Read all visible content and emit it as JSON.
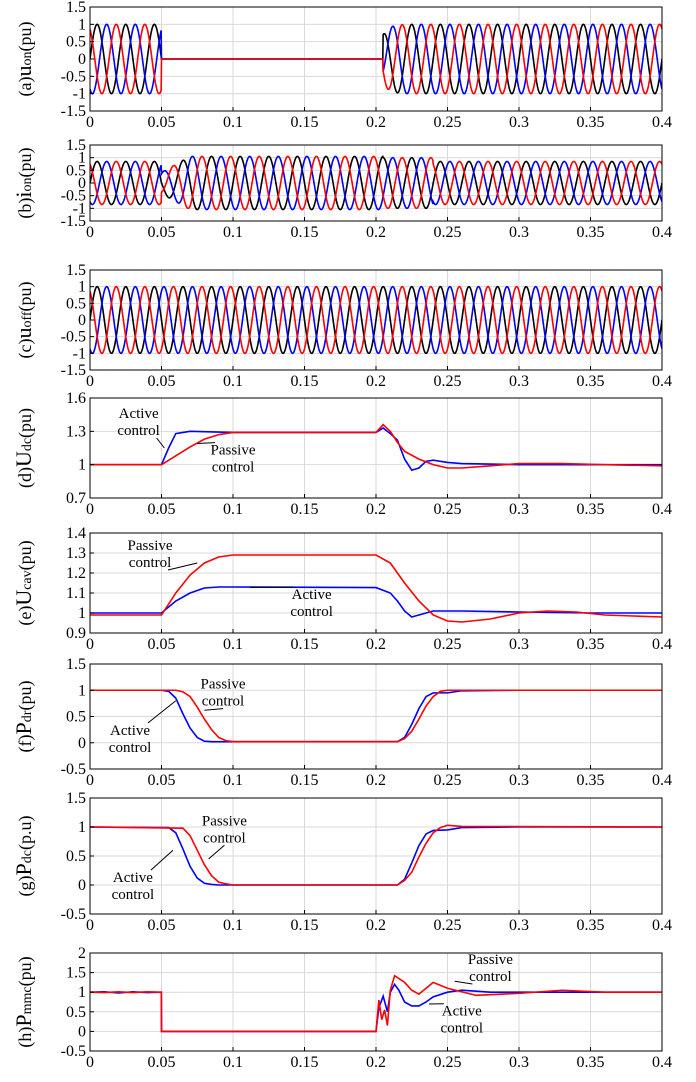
{
  "colors": {
    "black": "#000000",
    "blue": "#0000ff",
    "red": "#ff0000",
    "grid": "#d9d9d9"
  },
  "chart_data": [
    {
      "id": "a",
      "type": "line",
      "ylabel": "(a)uon(pu)",
      "ylabel_parts": [
        "(a)",
        "u",
        "on",
        "(pu)"
      ],
      "xlim": [
        0,
        0.4
      ],
      "ylim": [
        -1.5,
        1.5
      ],
      "xticks": [
        "0",
        "0.05",
        "0.1",
        "0.15",
        "0.2",
        "0.25",
        "0.3",
        "0.35",
        "0.4"
      ],
      "yticks": [
        "1.5",
        "1",
        "0.5",
        "0",
        "-0.5",
        "-1",
        "-1.5"
      ],
      "series": [
        {
          "color": "#000000",
          "waveform": "three-phase",
          "amplitude": 1,
          "freq_hz": 50,
          "phase_deg": 0,
          "zero_from": 0.05,
          "resume_at": 0.205
        },
        {
          "color": "#0000ff",
          "waveform": "three-phase",
          "amplitude": 1,
          "freq_hz": 50,
          "phase_deg": -120,
          "zero_from": 0.05,
          "resume_at": 0.205
        },
        {
          "color": "#ff0000",
          "waveform": "three-phase",
          "amplitude": 1,
          "freq_hz": 50,
          "phase_deg": 120,
          "zero_from": 0.05,
          "resume_at": 0.205
        }
      ],
      "annotations": []
    },
    {
      "id": "b",
      "type": "line",
      "ylabel": "(b)ion(pu)",
      "ylabel_parts": [
        "(b)",
        "i",
        "on",
        "(pu)"
      ],
      "xlim": [
        0,
        0.4
      ],
      "ylim": [
        -1.5,
        1.5
      ],
      "xticks": [
        "0",
        "0.05",
        "0.1",
        "0.15",
        "0.2",
        "0.25",
        "0.3",
        "0.35",
        "0.4"
      ],
      "yticks": [
        "1.5",
        "1",
        "0.5",
        "0",
        "-0.5",
        "-1",
        "-1.5"
      ],
      "series": [
        {
          "color": "#000000",
          "waveform": "three-phase",
          "amplitude": 0.85,
          "fault_amplitude": 1.05,
          "freq_hz": 50,
          "phase_deg": 0
        },
        {
          "color": "#0000ff",
          "waveform": "three-phase",
          "amplitude": 0.85,
          "fault_amplitude": 1.05,
          "freq_hz": 50,
          "phase_deg": -120
        },
        {
          "color": "#ff0000",
          "waveform": "three-phase",
          "amplitude": 0.85,
          "fault_amplitude": 1.05,
          "freq_hz": 50,
          "phase_deg": 120
        }
      ],
      "annotations": []
    },
    {
      "id": "c",
      "type": "line",
      "ylabel": "(c)uoff(pu)",
      "ylabel_parts": [
        "(c)",
        "u",
        "off",
        "(pu)"
      ],
      "xlim": [
        0,
        0.4
      ],
      "ylim": [
        -1.5,
        1.5
      ],
      "xticks": [
        "0",
        "0.05",
        "0.1",
        "0.15",
        "0.2",
        "0.25",
        "0.3",
        "0.35",
        "0.4"
      ],
      "yticks": [
        "1.5",
        "1",
        "0.5",
        "0",
        "-0.5",
        "-1",
        "-1.5"
      ],
      "series": [
        {
          "color": "#000000",
          "waveform": "three-phase",
          "amplitude": 1,
          "freq_hz": 50,
          "phase_deg": 0
        },
        {
          "color": "#0000ff",
          "waveform": "three-phase",
          "amplitude": 1,
          "freq_hz": 50,
          "phase_deg": -120
        },
        {
          "color": "#ff0000",
          "waveform": "three-phase",
          "amplitude": 1,
          "freq_hz": 50,
          "phase_deg": 120
        }
      ],
      "annotations": []
    },
    {
      "id": "d",
      "type": "line",
      "ylabel": "(d)Udc(pu)",
      "ylabel_parts": [
        "(d)",
        "U",
        "dc",
        "(pu)"
      ],
      "xlim": [
        0,
        0.4
      ],
      "ylim": [
        0.7,
        1.6
      ],
      "xticks": [
        "0",
        "0.05",
        "0.1",
        "0.15",
        "0.2",
        "0.25",
        "0.3",
        "0.35",
        "0.4"
      ],
      "yticks": [
        "1.6",
        "1.3",
        "1",
        "0.7"
      ],
      "series": [
        {
          "color": "#0000ff",
          "x": [
            0,
            0.05,
            0.055,
            0.06,
            0.07,
            0.1,
            0.2,
            0.205,
            0.21,
            0.215,
            0.22,
            0.225,
            0.23,
            0.235,
            0.24,
            0.25,
            0.26,
            0.3,
            0.35,
            0.4
          ],
          "y": [
            1.0,
            1.0,
            1.15,
            1.28,
            1.3,
            1.29,
            1.29,
            1.33,
            1.28,
            1.22,
            1.05,
            0.95,
            0.97,
            1.03,
            1.04,
            1.02,
            1.01,
            1.0,
            1.0,
            1.0
          ]
        },
        {
          "color": "#ff0000",
          "x": [
            0,
            0.05,
            0.06,
            0.07,
            0.08,
            0.09,
            0.1,
            0.2,
            0.205,
            0.21,
            0.215,
            0.22,
            0.23,
            0.24,
            0.25,
            0.26,
            0.28,
            0.3,
            0.33,
            0.36,
            0.4
          ],
          "y": [
            1.0,
            1.0,
            1.08,
            1.16,
            1.23,
            1.27,
            1.29,
            1.29,
            1.36,
            1.3,
            1.2,
            1.12,
            1.05,
            1.0,
            0.97,
            0.97,
            0.99,
            1.01,
            1.01,
            1.0,
            0.99
          ]
        }
      ],
      "annotations": [
        {
          "text": [
            "Active",
            "control"
          ],
          "x": 0.034,
          "y": 1.42,
          "arrow_to": [
            0.052,
            1.15
          ]
        },
        {
          "text": [
            "Passive",
            "control"
          ],
          "x": 0.1,
          "y": 1.09,
          "arrow_to": [
            0.075,
            1.19
          ]
        }
      ]
    },
    {
      "id": "e",
      "type": "line",
      "ylabel": "(e)Ucav(pu)",
      "ylabel_parts": [
        "(e)",
        "U",
        "cav",
        "(pu)"
      ],
      "xlim": [
        0,
        0.4
      ],
      "ylim": [
        0.9,
        1.4
      ],
      "xticks": [
        "0",
        "0.05",
        "0.1",
        "0.15",
        "0.2",
        "0.25",
        "0.3",
        "0.35",
        "0.4"
      ],
      "yticks": [
        "1.4",
        "1.3",
        "1.2",
        "1.1",
        "1",
        "0.9"
      ],
      "series": [
        {
          "color": "#0000ff",
          "x": [
            0,
            0.05,
            0.06,
            0.07,
            0.08,
            0.09,
            0.1,
            0.2,
            0.21,
            0.215,
            0.22,
            0.225,
            0.23,
            0.24,
            0.26,
            0.3,
            0.35,
            0.4
          ],
          "y": [
            1.0,
            1.0,
            1.06,
            1.1,
            1.125,
            1.13,
            1.13,
            1.127,
            1.1,
            1.06,
            1.01,
            0.98,
            0.99,
            1.01,
            1.01,
            1.005,
            1.0,
            1.0
          ]
        },
        {
          "color": "#ff0000",
          "x": [
            0,
            0.05,
            0.06,
            0.07,
            0.08,
            0.09,
            0.1,
            0.2,
            0.21,
            0.22,
            0.23,
            0.24,
            0.25,
            0.26,
            0.28,
            0.3,
            0.32,
            0.34,
            0.36,
            0.38,
            0.4
          ],
          "y": [
            0.99,
            0.99,
            1.1,
            1.19,
            1.25,
            1.28,
            1.29,
            1.29,
            1.25,
            1.15,
            1.06,
            0.99,
            0.96,
            0.955,
            0.97,
            1.0,
            1.01,
            1.005,
            0.99,
            0.985,
            0.98
          ]
        }
      ],
      "annotations": [
        {
          "text": [
            "Passive",
            "control"
          ],
          "x": 0.042,
          "y": 1.315,
          "arrow_to": [
            0.075,
            1.25
          ]
        },
        {
          "text": [
            "Active",
            "control"
          ],
          "x": 0.155,
          "y": 1.07,
          "arrow_to": [
            0.112,
            1.128
          ]
        }
      ]
    },
    {
      "id": "f",
      "type": "line",
      "ylabel": "(f)Pdr(pu)",
      "ylabel_parts": [
        "(f)",
        "P",
        "dr",
        "(pu)"
      ],
      "xlim": [
        0,
        0.4
      ],
      "ylim": [
        -0.5,
        1.5
      ],
      "xticks": [
        "0",
        "0.05",
        "0.1",
        "0.15",
        "0.2",
        "0.25",
        "0.3",
        "0.35",
        "0.4"
      ],
      "yticks": [
        "1.5",
        "1",
        "0.5",
        "0",
        "-0.5"
      ],
      "series": [
        {
          "color": "#0000ff",
          "x": [
            0,
            0.05,
            0.055,
            0.06,
            0.065,
            0.07,
            0.075,
            0.08,
            0.085,
            0.09,
            0.215,
            0.22,
            0.225,
            0.23,
            0.235,
            0.24,
            0.25,
            0.26,
            0.3,
            0.4
          ],
          "y": [
            1.0,
            1.0,
            0.98,
            0.85,
            0.55,
            0.28,
            0.1,
            0.03,
            0.02,
            0.02,
            0.02,
            0.1,
            0.35,
            0.65,
            0.88,
            0.95,
            0.95,
            0.99,
            1.0,
            1.0
          ]
        },
        {
          "color": "#ff0000",
          "x": [
            0,
            0.06,
            0.065,
            0.07,
            0.075,
            0.08,
            0.085,
            0.09,
            0.095,
            0.1,
            0.215,
            0.22,
            0.225,
            0.23,
            0.235,
            0.24,
            0.245,
            0.25,
            0.26,
            0.4
          ],
          "y": [
            1.0,
            1.0,
            0.97,
            0.88,
            0.68,
            0.45,
            0.25,
            0.1,
            0.04,
            0.02,
            0.02,
            0.08,
            0.22,
            0.45,
            0.7,
            0.88,
            0.98,
            1.0,
            1.0,
            1.0
          ]
        }
      ],
      "annotations": [
        {
          "text": [
            "Passive",
            "control"
          ],
          "x": 0.093,
          "y": 1.03,
          "arrow_to": [
            0.08,
            0.62
          ]
        },
        {
          "text": [
            "Active",
            "control"
          ],
          "x": 0.028,
          "y": 0.15,
          "arrow_to": [
            0.06,
            0.8
          ]
        }
      ]
    },
    {
      "id": "g",
      "type": "line",
      "ylabel": "(g)Pdc(p.u)",
      "ylabel_parts": [
        "(g)",
        "P",
        "dc",
        "(p.u)"
      ],
      "xlim": [
        0,
        0.4
      ],
      "ylim": [
        -0.5,
        1.5
      ],
      "xticks": [
        "0",
        "0.05",
        "0.1",
        "0.15",
        "0.2",
        "0.25",
        "0.3",
        "0.35",
        "0.4"
      ],
      "yticks": [
        "1.5",
        "1",
        "0.5",
        "0",
        "-0.5"
      ],
      "series": [
        {
          "color": "#0000ff",
          "x": [
            0,
            0.055,
            0.06,
            0.065,
            0.07,
            0.075,
            0.08,
            0.085,
            0.09,
            0.215,
            0.22,
            0.225,
            0.23,
            0.235,
            0.24,
            0.25,
            0.26,
            0.3,
            0.4
          ],
          "y": [
            1.0,
            0.99,
            0.9,
            0.62,
            0.32,
            0.12,
            0.03,
            0.01,
            0.0,
            0.0,
            0.1,
            0.38,
            0.68,
            0.88,
            0.94,
            0.95,
            0.99,
            1.0,
            1.0
          ]
        },
        {
          "color": "#ff0000",
          "x": [
            0,
            0.065,
            0.07,
            0.075,
            0.08,
            0.085,
            0.09,
            0.095,
            0.1,
            0.215,
            0.22,
            0.225,
            0.23,
            0.235,
            0.24,
            0.245,
            0.25,
            0.26,
            0.4
          ],
          "y": [
            1.0,
            0.98,
            0.85,
            0.6,
            0.35,
            0.16,
            0.05,
            0.02,
            0.0,
            0.0,
            0.08,
            0.22,
            0.48,
            0.72,
            0.9,
            0.99,
            1.03,
            1.01,
            1.0
          ]
        }
      ],
      "annotations": [
        {
          "text": [
            "Passive",
            "control"
          ],
          "x": 0.094,
          "y": 1.03,
          "arrow_to": [
            0.083,
            0.45
          ]
        },
        {
          "text": [
            "Active",
            "control"
          ],
          "x": 0.03,
          "y": 0.05,
          "arrow_to": [
            0.058,
            0.6
          ]
        }
      ]
    },
    {
      "id": "h",
      "type": "line",
      "ylabel": "(h)Pmmc(pu)",
      "ylabel_parts": [
        "(h)",
        "P",
        "mmc",
        "(pu)"
      ],
      "xlim": [
        0,
        0.4
      ],
      "ylim": [
        -0.5,
        2
      ],
      "xticks": [
        "0",
        "0.05",
        "0.1",
        "0.15",
        "0.2",
        "0.25",
        "0.3",
        "0.35",
        "0.4"
      ],
      "yticks": [
        "2",
        "1.5",
        "1",
        "0.5",
        "0",
        "-0.5"
      ],
      "series": [
        {
          "color": "#0000ff",
          "x": [
            0,
            0.01,
            0.02,
            0.03,
            0.04,
            0.0499,
            0.05,
            0.2,
            0.202,
            0.205,
            0.208,
            0.21,
            0.213,
            0.216,
            0.22,
            0.225,
            0.23,
            0.235,
            0.24,
            0.25,
            0.26,
            0.28,
            0.3,
            0.33,
            0.36,
            0.4
          ],
          "y": [
            1.0,
            1.01,
            0.98,
            1.01,
            0.99,
            1.0,
            0.0,
            0.0,
            0.6,
            0.9,
            0.5,
            1.0,
            1.2,
            1.05,
            0.75,
            0.65,
            0.65,
            0.75,
            0.88,
            1.0,
            1.05,
            1.0,
            1.0,
            1.0,
            1.0,
            1.0
          ]
        },
        {
          "color": "#ff0000",
          "x": [
            0,
            0.01,
            0.02,
            0.03,
            0.04,
            0.0499,
            0.05,
            0.2,
            0.202,
            0.204,
            0.206,
            0.208,
            0.21,
            0.213,
            0.216,
            0.22,
            0.225,
            0.23,
            0.235,
            0.24,
            0.25,
            0.27,
            0.3,
            0.33,
            0.36,
            0.4
          ],
          "y": [
            1.0,
            0.99,
            1.01,
            0.99,
            1.01,
            1.0,
            0.0,
            0.0,
            0.8,
            0.3,
            0.55,
            0.15,
            1.05,
            1.42,
            1.35,
            1.25,
            1.05,
            0.95,
            1.1,
            1.25,
            1.1,
            0.92,
            0.97,
            1.05,
            1.0,
            1.0
          ]
        }
      ],
      "annotations": [
        {
          "text": [
            "Passive",
            "control"
          ],
          "x": 0.28,
          "y": 1.72,
          "arrow_to": [
            0.255,
            1.28
          ]
        },
        {
          "text": [
            "Active",
            "control"
          ],
          "x": 0.26,
          "y": 0.4,
          "arrow_to": [
            0.237,
            0.7
          ]
        }
      ]
    }
  ]
}
